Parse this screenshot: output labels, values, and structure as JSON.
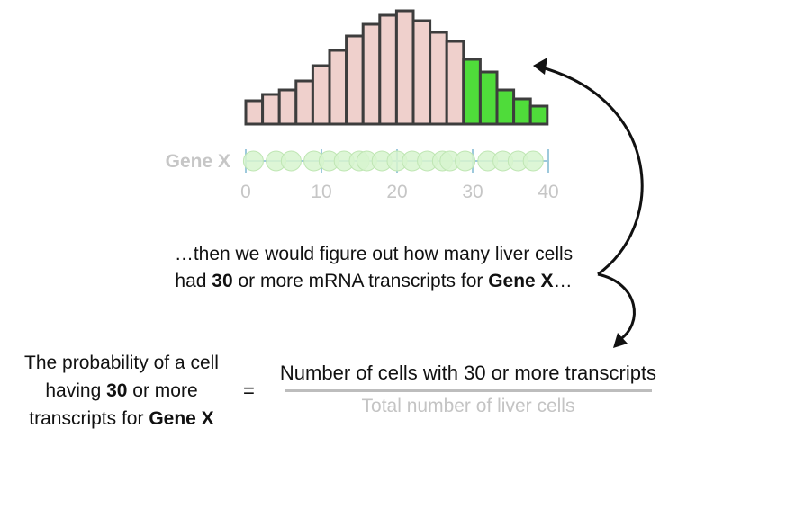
{
  "chart_data": {
    "type": "bar",
    "values": [
      26,
      33,
      38,
      48,
      65,
      82,
      98,
      111,
      121,
      126,
      115,
      102,
      92,
      72,
      58,
      38,
      28,
      20
    ],
    "highlight_from_index": 13,
    "colors": {
      "normal": "#efd0cc",
      "highlight": "#4fdc3a",
      "stroke": "#3d3d3d"
    }
  },
  "axis": {
    "gene_label": "Gene X",
    "ticks": [
      {
        "value": 0,
        "label": "0"
      },
      {
        "value": 10,
        "label": "10"
      },
      {
        "value": 20,
        "label": "20"
      },
      {
        "value": 30,
        "label": "30"
      },
      {
        "value": 40,
        "label": "40"
      }
    ],
    "min": 0,
    "max": 40,
    "points": [
      1,
      4,
      6,
      9,
      11,
      13,
      15,
      16,
      18,
      20,
      22,
      24,
      26,
      27,
      29,
      32,
      34,
      36,
      38
    ],
    "point_color": "#d7f5cf",
    "point_stroke": "#bfe6b3",
    "axis_color": "#9ec9dc",
    "label_color": "#c6c6c6"
  },
  "caption": {
    "line1": "…then we would figure out how many liver cells",
    "line2_pre": "had ",
    "line2_bold1": "30",
    "line2_mid": " or more mRNA transcripts for ",
    "line2_bold2": "Gene X",
    "line2_post": "…"
  },
  "equation": {
    "left_line1": "The probability of a cell",
    "left_line2_pre": "having ",
    "left_line2_bold": "30",
    "left_line2_post": " or more",
    "left_line3_pre": "transcripts for ",
    "left_line3_bold": "Gene X",
    "equals": "=",
    "numerator": "Number of cells with 30 or more transcripts",
    "denominator": "Total number of liver cells"
  }
}
